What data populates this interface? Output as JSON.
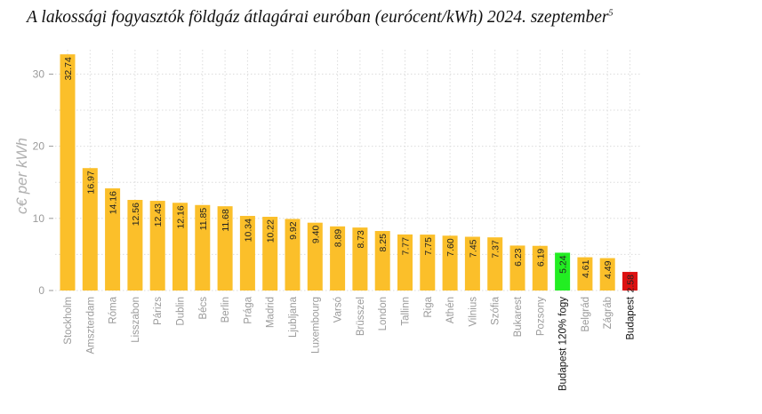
{
  "chart_data": {
    "type": "bar",
    "title": "A lakossági fogyasztók földgáz átlagárai euróban (eurócent/kWh) 2024. szeptember",
    "title_superscript": "5",
    "ylabel": "c€ per kWh",
    "xlabel": "",
    "ylim": [
      0,
      33
    ],
    "yticks": [
      0,
      10,
      20,
      30
    ],
    "grid": true,
    "categories": [
      "Stockholm",
      "Amszterdam",
      "Róma",
      "Lisszabon",
      "Párizs",
      "Dublin",
      "Bécs",
      "Berlin",
      "Prága",
      "Madrid",
      "Ljubljana",
      "Luxembourg",
      "Varsó",
      "Brüsszel",
      "London",
      "Tallinn",
      "Riga",
      "Athén",
      "Vilnius",
      "Szófia",
      "Bukarest",
      "Pozsony",
      "Budapest 120% fogy",
      "Belgrád",
      "Zágráb",
      "Budapest"
    ],
    "values": [
      32.74,
      16.97,
      14.16,
      12.56,
      12.43,
      12.16,
      11.85,
      11.68,
      10.34,
      10.22,
      9.92,
      9.4,
      8.89,
      8.73,
      8.25,
      7.77,
      7.75,
      7.6,
      7.45,
      7.37,
      6.23,
      6.19,
      5.24,
      4.61,
      4.49,
      2.58
    ],
    "value_labels": [
      "32.74",
      "16.97",
      "14.16",
      "12.56",
      "12.43",
      "12.16",
      "11.85",
      "11.68",
      "10.34",
      "10.22",
      "9.92",
      "9.40",
      "8.89",
      "8.73",
      "8.25",
      "7.77",
      "7.75",
      "7.60",
      "7.45",
      "7.37",
      "6.23",
      "6.19",
      "5.24",
      "4.61",
      "4.49",
      "2.58"
    ],
    "colors": {
      "default": "#fbbf2a",
      "highlight": {
        "Budapest 120% fogy": "#22ee22",
        "Budapest": "#dd1111"
      },
      "grid": "#dcdcdc",
      "tick_text": "#9a9a9a",
      "highlight_text": "#111111"
    }
  }
}
